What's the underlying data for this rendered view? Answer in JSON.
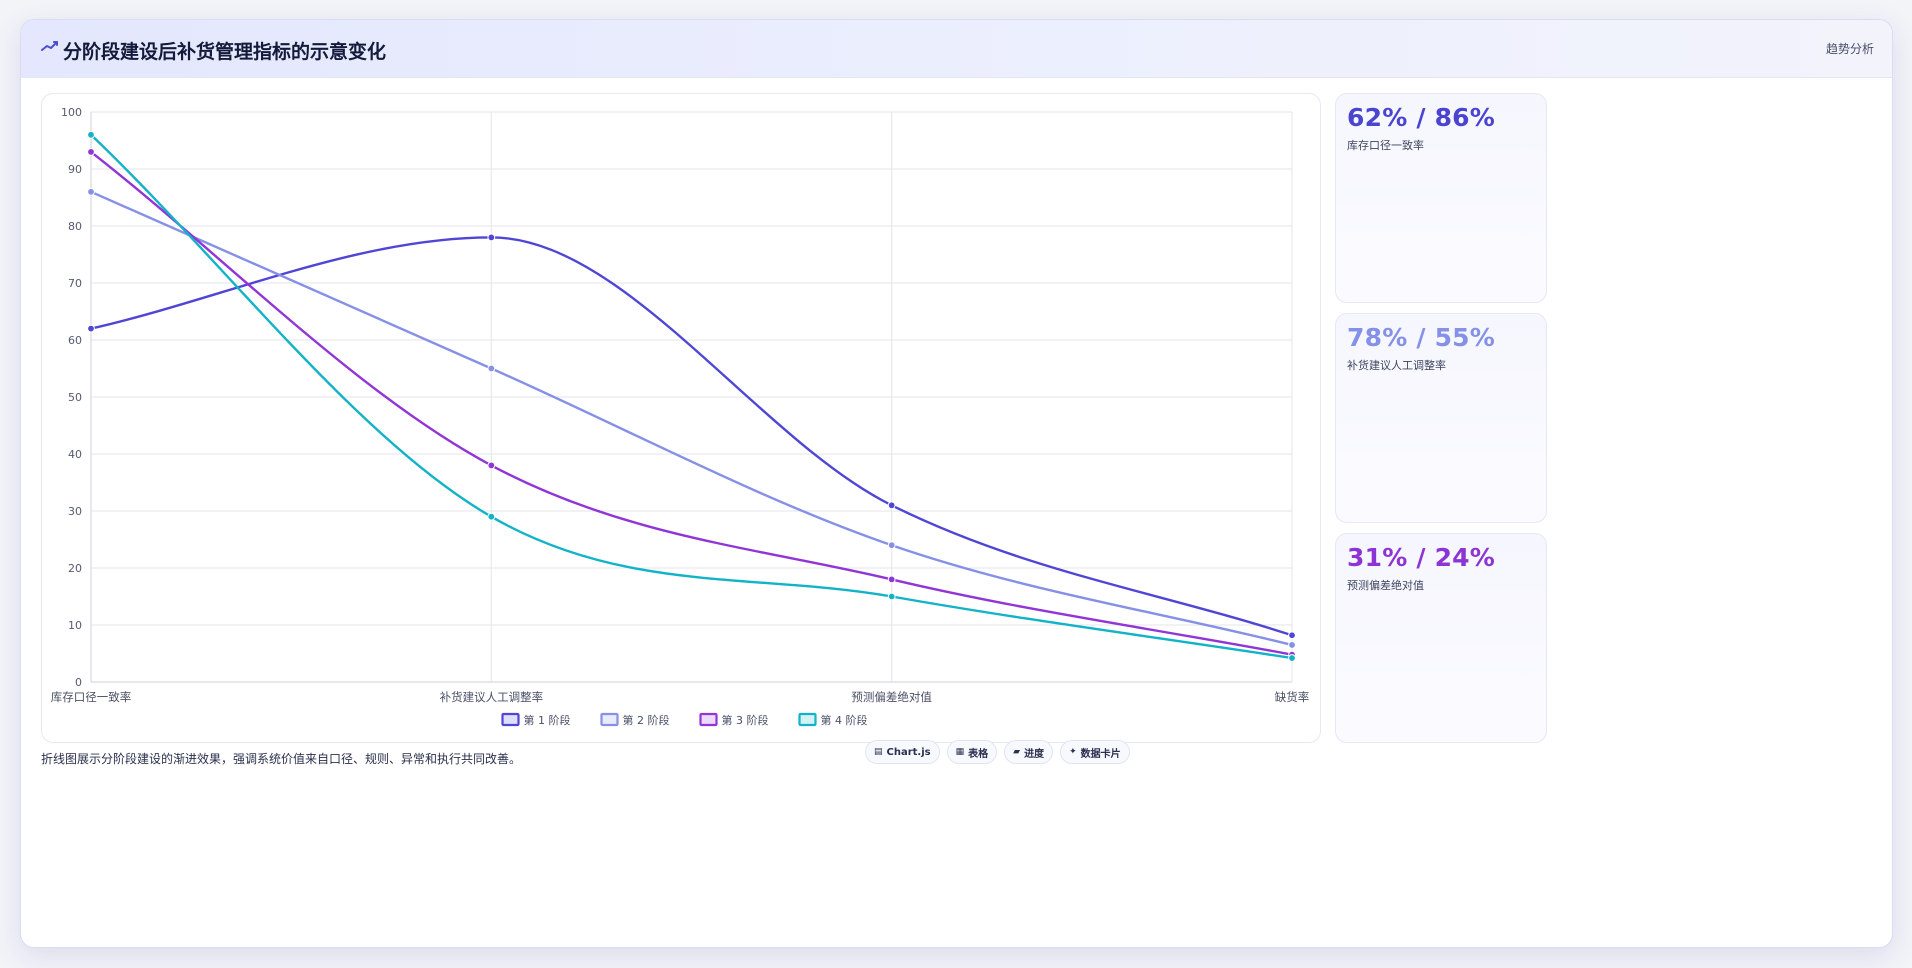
{
  "header": {
    "title": "分阶段建设后补货管理指标的示意变化",
    "right_label": "趋势分析",
    "icon": "chart-trend-icon"
  },
  "chart_data": {
    "type": "line",
    "categories": [
      "库存口径一致率",
      "补货建议人工调整率",
      "预测偏差绝对值",
      "缺货率"
    ],
    "series": [
      {
        "name": "第 1 阶段",
        "values": [
          62,
          78,
          31,
          8.2
        ],
        "color": "#5046d6"
      },
      {
        "name": "第 2 阶段",
        "values": [
          86,
          55,
          24,
          6.5
        ],
        "color": "#8590e6"
      },
      {
        "name": "第 3 阶段",
        "values": [
          93,
          38,
          18,
          4.8
        ],
        "color": "#9135d6"
      },
      {
        "name": "第 4 阶段",
        "values": [
          96,
          29,
          15,
          4.2
        ],
        "color": "#13b3c7"
      }
    ],
    "ylim": [
      0,
      100
    ],
    "yticks": [
      "0",
      "10",
      "20",
      "30",
      "40",
      "50",
      "60",
      "70",
      "80",
      "90",
      "100"
    ],
    "grid": true,
    "legend": "bottom-center",
    "smooth": true
  },
  "stats": [
    {
      "value": "62% / 86%",
      "label": "库存口径一致率",
      "color": "#4b44d1"
    },
    {
      "value": "78% / 55%",
      "label": "补货建议人工调整率",
      "color": "#8591e6"
    },
    {
      "value": "31% / 24%",
      "label": "预测偏差绝对值",
      "color": "#8d34d4"
    }
  ],
  "footer": {
    "description": "折线图展示分阶段建设的渐进效果，强调系统价值来自口径、规则、异常和执行共同改善。",
    "badges": [
      {
        "icon": "chart-icon",
        "glyph": "▤",
        "label": "Chart.js"
      },
      {
        "icon": "table-icon",
        "glyph": "▦",
        "label": "表格"
      },
      {
        "icon": "progress-icon",
        "glyph": "▰",
        "label": "进度"
      },
      {
        "icon": "card-icon",
        "glyph": "✦",
        "label": "数据卡片"
      }
    ]
  }
}
